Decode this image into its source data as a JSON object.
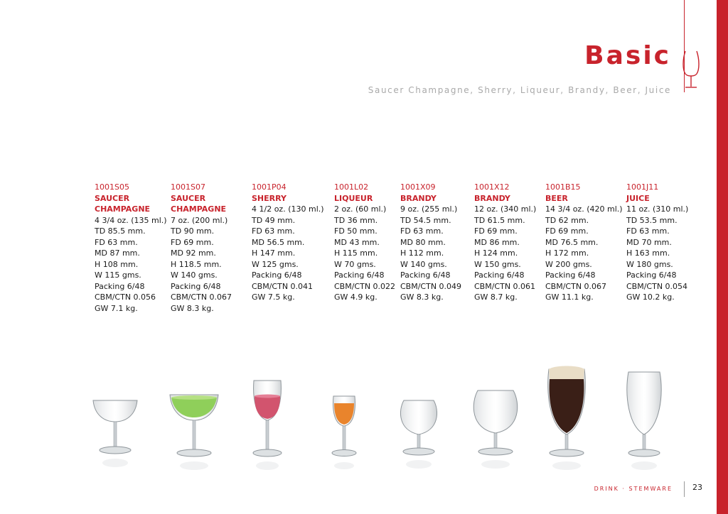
{
  "header": {
    "title": "Basic",
    "subtitle": "Saucer Champagne, Sherry, Liqueur, Brandy, Beer, Juice"
  },
  "products": [
    {
      "code": "1001S05",
      "name": "SAUCER CHAMPAGNE",
      "specs": [
        "4 3/4 oz. (135 ml.)",
        "TD 85.5 mm.",
        "FD 63 mm.",
        "MD 87 mm.",
        "H 108 mm.",
        "W 115 gms.",
        "Packing 6/48",
        "CBM/CTN 0.056",
        "GW 7.1 kg."
      ]
    },
    {
      "code": "1001S07",
      "name": "SAUCER CHAMPAGNE",
      "specs": [
        "7 oz. (200 ml.)",
        "TD 90 mm.",
        "FD 69 mm.",
        "MD 92 mm.",
        "H 118.5 mm.",
        "W 140 gms.",
        "Packing 6/48",
        "CBM/CTN 0.067",
        "GW 8.3 kg."
      ]
    },
    {
      "code": "1001P04",
      "name": "SHERRY",
      "specs": [
        "4 1/2 oz. (130 ml.)",
        "TD 49 mm.",
        "FD 63 mm.",
        "MD 56.5 mm.",
        "H 147 mm.",
        "W 125 gms.",
        "Packing 6/48",
        "CBM/CTN 0.041",
        "GW 7.5 kg."
      ]
    },
    {
      "code": "1001L02",
      "name": "LIQUEUR",
      "specs": [
        "2 oz. (60 ml.)",
        "TD 36 mm.",
        "FD 50 mm.",
        "MD 43 mm.",
        "H 115 mm.",
        "W 70 gms.",
        "Packing 6/48",
        "CBM/CTN 0.022",
        "GW 4.9 kg."
      ]
    },
    {
      "code": "1001X09",
      "name": "BRANDY",
      "specs": [
        "9 oz. (255 ml.)",
        "TD 54.5 mm.",
        "FD 63 mm.",
        "MD 80 mm.",
        "H 112 mm.",
        "W 140 gms.",
        "Packing 6/48",
        "CBM/CTN 0.049",
        "GW 8.3 kg."
      ]
    },
    {
      "code": "1001X12",
      "name": "BRANDY",
      "specs": [
        "12 oz. (340 ml.)",
        "TD 61.5 mm.",
        "FD 69 mm.",
        "MD 86 mm.",
        "H 124 mm.",
        "W 150 gms.",
        "Packing 6/48",
        "CBM/CTN 0.061",
        "GW 8.7 kg."
      ]
    },
    {
      "code": "1001B15",
      "name": "BEER",
      "specs": [
        "14 3/4 oz. (420 ml.)",
        "TD 62 mm.",
        "FD 69 mm.",
        "MD 76.5 mm.",
        "H 172 mm.",
        "W 200 gms.",
        "Packing 6/48",
        "CBM/CTN 0.067",
        "GW 11.1 kg."
      ]
    },
    {
      "code": "1001J11",
      "name": "JUICE",
      "specs": [
        "11 oz. (310 ml.)",
        "TD 53.5 mm.",
        "FD 63 mm.",
        "MD 70 mm.",
        "H 163 mm.",
        "W 180 gms.",
        "Packing 6/48",
        "CBM/CTN 0.054",
        "GW 10.2 kg."
      ]
    }
  ],
  "footer": {
    "section": "DRINK · STEMWARE",
    "page_number": "23"
  },
  "colors": {
    "accent": "#c8232c",
    "subtitle_gray": "#a9a9a9"
  }
}
